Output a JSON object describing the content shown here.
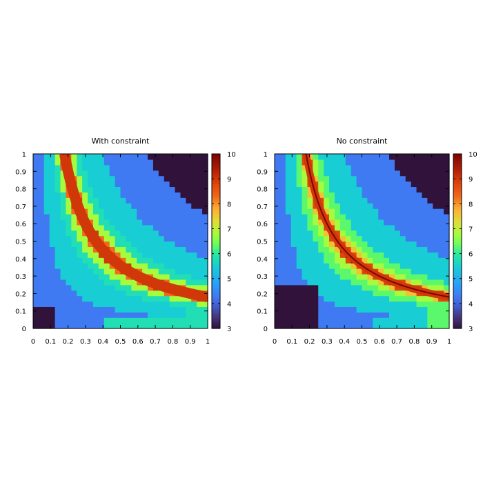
{
  "chart_data": [
    {
      "type": "heatmap",
      "title": "With constraint",
      "xlabel": "",
      "ylabel": "",
      "xlim": [
        0,
        1
      ],
      "ylim": [
        0,
        1
      ],
      "x_ticks": [
        "0",
        "0.1",
        "0.2",
        "0.3",
        "0.4",
        "0.5",
        "0.6",
        "0.7",
        "0.8",
        "0.9",
        "1"
      ],
      "y_ticks": [
        "0",
        "0.1",
        "0.2",
        "0.3",
        "0.4",
        "0.5",
        "0.6",
        "0.7",
        "0.8",
        "0.9",
        "1"
      ],
      "colorbar": {
        "range": [
          3,
          10
        ],
        "ticks": [
          "3",
          "4",
          "5",
          "6",
          "7",
          "8",
          "9",
          "10"
        ]
      },
      "grid_resolution": 32,
      "curve": {
        "form": "x*y = c",
        "c": 0.18,
        "band_halfwidth": 0.03,
        "line": false
      },
      "levels": [
        {
          "distance": 0.02,
          "value": 9.0
        },
        {
          "distance": 0.03,
          "value": 8.3
        },
        {
          "distance": 0.06,
          "value": 6.8
        },
        {
          "distance": 0.095,
          "value": 5.8
        },
        {
          "distance": 0.2,
          "value": 5.5
        },
        {
          "distance": 0.38,
          "value": 4.3
        },
        {
          "distance": 99,
          "value": 3.0
        }
      ],
      "corner_region": {
        "x_from": 0,
        "x_to": 0.125,
        "y_from": 0,
        "y_to": 0.125,
        "value": 3.0
      },
      "right_edge_region": {
        "x_from": 0.875,
        "x_to": 1,
        "y_from": 0,
        "y_to": 0.25,
        "value": 5.8
      },
      "bottom_edge_region": {
        "x_from": 0.4,
        "x_to": 0.875,
        "y_from": 0,
        "y_to": 0.06,
        "value": 5.8
      }
    },
    {
      "type": "heatmap",
      "title": "No constraint",
      "xlabel": "",
      "ylabel": "",
      "xlim": [
        0,
        1
      ],
      "ylim": [
        0,
        1
      ],
      "x_ticks": [
        "0",
        "0.1",
        "0.2",
        "0.3",
        "0.4",
        "0.5",
        "0.6",
        "0.7",
        "0.8",
        "0.9",
        "1"
      ],
      "y_ticks": [
        "0",
        "0.1",
        "0.2",
        "0.3",
        "0.4",
        "0.5",
        "0.6",
        "0.7",
        "0.8",
        "0.9",
        "1"
      ],
      "colorbar": {
        "range": [
          3,
          10
        ],
        "ticks": [
          "3",
          "4",
          "5",
          "6",
          "7",
          "8",
          "9",
          "10"
        ]
      },
      "grid_resolution": 32,
      "curve": {
        "form": "x*y = c",
        "c": 0.18,
        "band_halfwidth": 0.02,
        "line": true
      },
      "levels": [
        {
          "distance": 0.006,
          "value": 9.6
        },
        {
          "distance": 0.02,
          "value": 8.8
        },
        {
          "distance": 0.03,
          "value": 7.6
        },
        {
          "distance": 0.05,
          "value": 6.8
        },
        {
          "distance": 0.085,
          "value": 6.3
        },
        {
          "distance": 0.2,
          "value": 5.5
        },
        {
          "distance": 0.38,
          "value": 4.3
        },
        {
          "distance": 99,
          "value": 3.0
        }
      ],
      "corner_region": {
        "x_from": 0,
        "x_to": 0.25,
        "y_from": 0,
        "y_to": 0.25,
        "value": 3.0
      },
      "right_edge_region": {
        "x_from": 0.875,
        "x_to": 1,
        "y_from": 0,
        "y_to": 0.25,
        "value": 6.3
      },
      "bottom_edge_region": {
        "x_from": 0.55,
        "x_to": 0.875,
        "y_from": 0,
        "y_to": 0.06,
        "value": 5.5
      }
    }
  ]
}
